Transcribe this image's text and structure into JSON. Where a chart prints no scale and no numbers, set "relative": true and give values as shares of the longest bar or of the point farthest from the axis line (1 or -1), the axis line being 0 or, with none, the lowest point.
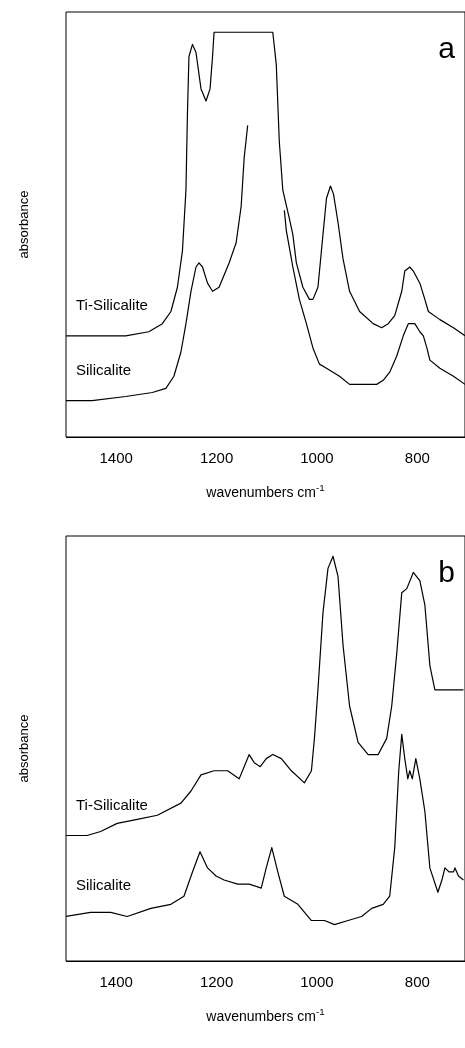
{
  "chart_data": [
    {
      "type": "line",
      "title": "a",
      "xlabel": "wavenumbers cm$^{-1}$",
      "ylabel": "absorbance",
      "relative": true,
      "xlim": [
        1500,
        705
      ],
      "xticks": [
        1400,
        1200,
        1000,
        800
      ],
      "legend": false,
      "grid": false,
      "marker": "none",
      "line_style": "solid",
      "series": [
        {
          "name": "Ti-Silicalite",
          "color": "#000000",
          "x": [
            1500,
            1448,
            1381,
            1335,
            1308,
            1291,
            1278,
            1268,
            1261,
            1258,
            1255,
            1248,
            1241,
            1231,
            1221,
            1213,
            1208,
            1205,
            1088,
            1081,
            1075,
            1068,
            1055,
            1048,
            1041,
            1028,
            1015,
            1008,
            998,
            988,
            981,
            973,
            967,
            958,
            948,
            935,
            915,
            888,
            871,
            858,
            845,
            831,
            825,
            815,
            808,
            795,
            785,
            778,
            755,
            728,
            705
          ],
          "values": [
            0.25,
            0.25,
            0.25,
            0.26,
            0.28,
            0.31,
            0.37,
            0.46,
            0.61,
            0.8,
            0.94,
            0.97,
            0.95,
            0.86,
            0.83,
            0.86,
            0.94,
            1,
            1,
            0.92,
            0.73,
            0.61,
            0.54,
            0.5,
            0.43,
            0.37,
            0.34,
            0.34,
            0.37,
            0.5,
            0.59,
            0.62,
            0.6,
            0.53,
            0.44,
            0.36,
            0.31,
            0.28,
            0.27,
            0.28,
            0.3,
            0.36,
            0.41,
            0.42,
            0.41,
            0.38,
            0.34,
            0.31,
            0.29,
            0.27,
            0.25
          ]
        },
        {
          "name": "Silicalite",
          "color": "#000000",
          "x": [
            1500,
            1448,
            1381,
            1328,
            1301,
            1285,
            1271,
            1261,
            1251,
            1241,
            1235,
            1228,
            1218,
            1208,
            1195,
            1175,
            1161,
            1151,
            1145,
            1138,
            1100,
            1065,
            1061,
            1048,
            1035,
            1021,
            1008,
            995,
            981,
            968,
            955,
            935,
            915,
            881,
            868,
            855,
            841,
            828,
            818,
            811,
            805,
            795,
            788,
            781,
            775,
            755,
            728,
            705
          ],
          "values": [
            0.09,
            0.09,
            0.1,
            0.11,
            0.12,
            0.15,
            0.21,
            0.28,
            0.36,
            0.42,
            0.43,
            0.42,
            0.38,
            0.36,
            0.37,
            0.43,
            0.48,
            0.57,
            0.69,
            0.77,
            null,
            0.56,
            0.51,
            0.42,
            0.34,
            0.28,
            0.22,
            0.18,
            0.17,
            0.16,
            0.15,
            0.13,
            0.13,
            0.13,
            0.14,
            0.16,
            0.2,
            0.25,
            0.28,
            0.28,
            0.28,
            0.26,
            0.25,
            0.22,
            0.19,
            0.17,
            0.15,
            0.13
          ]
        }
      ]
    },
    {
      "type": "line",
      "title": "b",
      "xlabel": "wavenumbers cm$^{-1}$",
      "ylabel": "absorbance",
      "relative": true,
      "xlim": [
        1500,
        705
      ],
      "xticks": [
        1400,
        1200,
        1000,
        800
      ],
      "legend": false,
      "grid": false,
      "marker": "none",
      "line_style": "solid",
      "series": [
        {
          "name": "Ti-Silicalite",
          "color": "#000000",
          "x": [
            1500,
            1458,
            1431,
            1398,
            1358,
            1318,
            1271,
            1251,
            1231,
            1205,
            1178,
            1155,
            1145,
            1135,
            1125,
            1113,
            1101,
            1088,
            1071,
            1051,
            1025,
            1011,
            1005,
            998,
            988,
            978,
            968,
            958,
            948,
            935,
            918,
            898,
            878,
            861,
            851,
            841,
            831,
            821,
            808,
            795,
            785,
            775,
            765,
            751,
            731,
            708
          ],
          "values": [
            0.31,
            0.31,
            0.32,
            0.34,
            0.35,
            0.36,
            0.39,
            0.42,
            0.46,
            0.47,
            0.47,
            0.45,
            0.48,
            0.51,
            0.49,
            0.48,
            0.5,
            0.51,
            0.5,
            0.47,
            0.44,
            0.47,
            0.55,
            0.67,
            0.86,
            0.97,
            1,
            0.95,
            0.78,
            0.63,
            0.54,
            0.51,
            0.51,
            0.55,
            0.63,
            0.76,
            0.91,
            0.92,
            0.96,
            0.94,
            0.88,
            0.73,
            0.67,
            0.67,
            0.67,
            0.67
          ]
        },
        {
          "name": "Silicalite",
          "color": "#000000",
          "x": [
            1500,
            1451,
            1411,
            1378,
            1331,
            1291,
            1265,
            1248,
            1233,
            1218,
            1201,
            1185,
            1158,
            1135,
            1111,
            1101,
            1090,
            1078,
            1065,
            1038,
            1011,
            985,
            965,
            938,
            911,
            891,
            868,
            855,
            845,
            837,
            831,
            825,
            819,
            815,
            810,
            803,
            795,
            785,
            775,
            759,
            751,
            745,
            737,
            728,
            725,
            718,
            708
          ],
          "values": [
            0.11,
            0.12,
            0.12,
            0.11,
            0.13,
            0.14,
            0.16,
            0.22,
            0.27,
            0.23,
            0.21,
            0.2,
            0.19,
            0.19,
            0.18,
            0.23,
            0.28,
            0.22,
            0.16,
            0.14,
            0.1,
            0.1,
            0.09,
            0.1,
            0.11,
            0.13,
            0.14,
            0.16,
            0.28,
            0.47,
            0.56,
            0.5,
            0.45,
            0.47,
            0.45,
            0.5,
            0.45,
            0.37,
            0.23,
            0.17,
            0.2,
            0.23,
            0.22,
            0.22,
            0.23,
            0.21,
            0.2
          ]
        }
      ]
    }
  ]
}
